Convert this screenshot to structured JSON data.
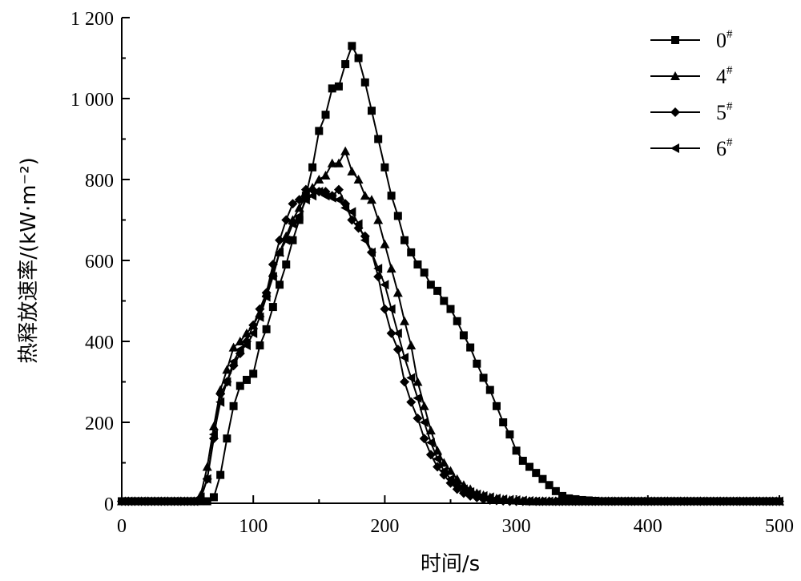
{
  "chart_data": {
    "type": "line",
    "xlabel": "时间/s",
    "ylabel": "热释放速率/(kW·m⁻²)",
    "xlim": [
      0,
      500
    ],
    "ylim": [
      0,
      1200
    ],
    "x_ticks": [
      "0",
      "100",
      "200",
      "300",
      "400",
      "500"
    ],
    "y_ticks": [
      "0",
      "200",
      "400",
      "600",
      "800",
      "1 000",
      "1 200"
    ],
    "grid": false,
    "legend_position": "top-right",
    "line_color": "#000000",
    "series": [
      {
        "name": "0",
        "name_sup": "#",
        "marker": "square",
        "x": [
          0,
          5,
          10,
          15,
          20,
          25,
          30,
          35,
          40,
          45,
          50,
          55,
          60,
          65,
          70,
          75,
          80,
          85,
          90,
          95,
          100,
          105,
          110,
          115,
          120,
          125,
          130,
          135,
          140,
          145,
          150,
          155,
          160,
          165,
          170,
          175,
          180,
          185,
          190,
          195,
          200,
          205,
          210,
          215,
          220,
          225,
          230,
          235,
          240,
          245,
          250,
          255,
          260,
          265,
          270,
          275,
          280,
          285,
          290,
          295,
          300,
          305,
          310,
          315,
          320,
          325,
          330,
          335,
          340,
          345,
          350,
          355,
          360,
          365,
          370,
          375,
          380,
          385,
          390,
          395,
          400,
          405,
          410,
          415,
          420,
          425,
          430,
          435,
          440,
          445,
          450,
          455,
          460,
          465,
          470,
          475,
          480,
          485,
          490,
          495,
          500
        ],
        "y": [
          5,
          5,
          5,
          5,
          5,
          5,
          5,
          5,
          5,
          5,
          5,
          5,
          5,
          5,
          15,
          70,
          160,
          240,
          290,
          305,
          320,
          390,
          430,
          485,
          540,
          590,
          650,
          700,
          760,
          830,
          920,
          960,
          1025,
          1030,
          1085,
          1130,
          1100,
          1040,
          970,
          900,
          830,
          760,
          710,
          650,
          620,
          590,
          570,
          540,
          525,
          500,
          480,
          450,
          415,
          385,
          345,
          310,
          280,
          240,
          200,
          170,
          130,
          105,
          90,
          75,
          60,
          45,
          30,
          18,
          12,
          10,
          8,
          7,
          6,
          5,
          5,
          5,
          5,
          5,
          5,
          5,
          5,
          5,
          5,
          5,
          5,
          5,
          5,
          5,
          5,
          5,
          5,
          5,
          5,
          5,
          5,
          5,
          5,
          5,
          5,
          5,
          5
        ]
      },
      {
        "name": "4",
        "name_sup": "#",
        "marker": "triangle",
        "x": [
          0,
          5,
          10,
          15,
          20,
          25,
          30,
          35,
          40,
          45,
          50,
          55,
          60,
          65,
          70,
          75,
          80,
          85,
          90,
          95,
          100,
          105,
          110,
          115,
          120,
          125,
          130,
          135,
          140,
          145,
          150,
          155,
          160,
          165,
          170,
          175,
          180,
          185,
          190,
          195,
          200,
          205,
          210,
          215,
          220,
          225,
          230,
          235,
          240,
          245,
          250,
          255,
          260,
          265,
          270,
          275,
          280,
          285,
          290,
          295,
          300,
          305,
          310,
          315,
          320,
          325,
          330,
          335,
          340,
          345,
          350,
          355,
          360,
          365,
          370,
          375,
          380,
          385,
          390,
          395,
          400,
          405,
          410,
          415,
          420,
          425,
          430,
          435,
          440,
          445,
          450,
          455,
          460,
          465,
          470,
          475,
          480,
          485,
          490,
          495,
          500
        ],
        "y": [
          5,
          5,
          5,
          5,
          5,
          5,
          5,
          5,
          5,
          5,
          5,
          5,
          20,
          90,
          190,
          280,
          330,
          385,
          400,
          420,
          440,
          470,
          520,
          570,
          620,
          660,
          700,
          730,
          760,
          780,
          800,
          810,
          840,
          840,
          870,
          820,
          800,
          760,
          750,
          700,
          640,
          580,
          520,
          450,
          390,
          300,
          240,
          180,
          130,
          100,
          80,
          60,
          45,
          35,
          25,
          20,
          15,
          12,
          10,
          8,
          7,
          6,
          5,
          5,
          5,
          5,
          5,
          5,
          5,
          5,
          5,
          5,
          5,
          5,
          5,
          5,
          5,
          5,
          5,
          5,
          5,
          5,
          5,
          5,
          5,
          5,
          5,
          5,
          5,
          5,
          5,
          5,
          5,
          5,
          5,
          5,
          5,
          5,
          5,
          5,
          5
        ]
      },
      {
        "name": "5",
        "name_sup": "#",
        "marker": "diamond",
        "x": [
          0,
          5,
          10,
          15,
          20,
          25,
          30,
          35,
          40,
          45,
          50,
          55,
          60,
          65,
          70,
          75,
          80,
          85,
          90,
          95,
          100,
          105,
          110,
          115,
          120,
          125,
          130,
          135,
          140,
          145,
          150,
          155,
          160,
          165,
          170,
          175,
          180,
          185,
          190,
          195,
          200,
          205,
          210,
          215,
          220,
          225,
          230,
          235,
          240,
          245,
          250,
          255,
          260,
          265,
          270,
          275,
          280,
          285,
          290,
          295,
          300,
          305,
          310,
          315,
          320,
          325,
          330,
          335,
          340,
          345,
          350,
          355,
          360,
          365,
          370,
          375,
          380,
          385,
          390,
          395,
          400,
          405,
          410,
          415,
          420,
          425,
          430,
          435,
          440,
          445,
          450,
          455,
          460,
          465,
          470,
          475,
          480,
          485,
          490,
          495,
          500
        ],
        "y": [
          5,
          5,
          5,
          5,
          5,
          5,
          5,
          5,
          5,
          5,
          5,
          5,
          10,
          60,
          160,
          270,
          300,
          340,
          370,
          400,
          440,
          480,
          520,
          590,
          650,
          700,
          740,
          750,
          775,
          775,
          770,
          770,
          760,
          775,
          740,
          700,
          680,
          660,
          620,
          560,
          480,
          420,
          380,
          300,
          250,
          210,
          160,
          120,
          90,
          70,
          50,
          35,
          25,
          18,
          14,
          10,
          8,
          7,
          6,
          5,
          5,
          5,
          5,
          5,
          5,
          5,
          5,
          5,
          5,
          5,
          5,
          5,
          5,
          5,
          5,
          5,
          5,
          5,
          5,
          5,
          5,
          5,
          5,
          5,
          5,
          5,
          5,
          5,
          5,
          5,
          5,
          5,
          5,
          5,
          5,
          5,
          5,
          5,
          5,
          5,
          5
        ]
      },
      {
        "name": "6",
        "name_sup": "#",
        "marker": "left-triangle",
        "x": [
          0,
          5,
          10,
          15,
          20,
          25,
          30,
          35,
          40,
          45,
          50,
          55,
          60,
          65,
          70,
          75,
          80,
          85,
          90,
          95,
          100,
          105,
          110,
          115,
          120,
          125,
          130,
          135,
          140,
          145,
          150,
          155,
          160,
          165,
          170,
          175,
          180,
          185,
          190,
          195,
          200,
          205,
          210,
          215,
          220,
          225,
          230,
          235,
          240,
          245,
          250,
          255,
          260,
          265,
          270,
          275,
          280,
          285,
          290,
          295,
          300,
          305,
          310,
          315,
          320,
          325,
          330,
          335,
          340,
          345,
          350,
          355,
          360,
          365,
          370,
          375,
          380,
          385,
          390,
          395,
          400,
          405,
          410,
          415,
          420,
          425,
          430,
          435,
          440,
          445,
          450,
          455,
          460,
          465,
          470,
          475,
          480,
          485,
          490,
          495,
          500
        ],
        "y": [
          5,
          5,
          5,
          5,
          5,
          5,
          5,
          5,
          5,
          5,
          5,
          5,
          15,
          60,
          170,
          250,
          300,
          350,
          380,
          390,
          420,
          460,
          510,
          560,
          620,
          650,
          690,
          710,
          750,
          760,
          770,
          760,
          755,
          750,
          730,
          720,
          690,
          650,
          620,
          580,
          540,
          480,
          420,
          360,
          310,
          260,
          200,
          150,
          110,
          80,
          60,
          45,
          35,
          28,
          22,
          18,
          15,
          12,
          10,
          9,
          8,
          7,
          6,
          5,
          5,
          5,
          5,
          5,
          5,
          5,
          5,
          5,
          5,
          5,
          5,
          5,
          5,
          5,
          5,
          5,
          5,
          5,
          5,
          5,
          5,
          5,
          5,
          5,
          5,
          5,
          5,
          5,
          5,
          5,
          5,
          5,
          5,
          5,
          5,
          5,
          5
        ]
      }
    ]
  }
}
